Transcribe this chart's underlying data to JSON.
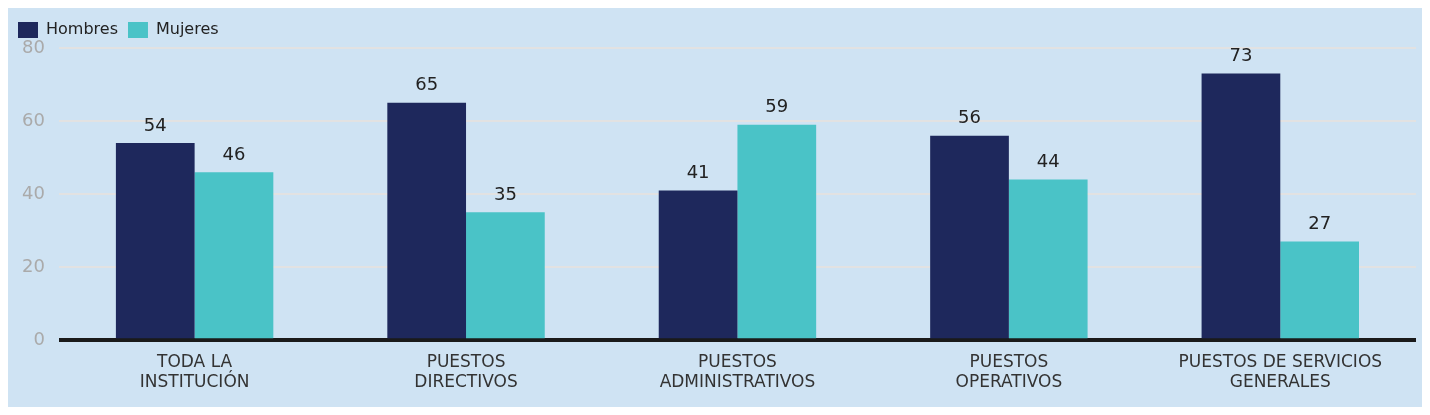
{
  "chart_data": {
    "type": "bar",
    "categories": [
      "TODA LA\nINSTITUCIÓN",
      "PUESTOS\nDIRECTIVOS",
      "PUESTOS\nADMINISTRATIVOS",
      "PUESTOS\nOPERATIVOS",
      "PUESTOS DE SERVICIOS\nGENERALES"
    ],
    "series": [
      {
        "name": "Hombres",
        "color": "#1e285c",
        "values": [
          54,
          65,
          41,
          56,
          73
        ]
      },
      {
        "name": "Mujeres",
        "color": "#4ac3c7",
        "values": [
          46,
          35,
          59,
          44,
          27
        ]
      }
    ],
    "ylim": [
      0,
      80
    ],
    "yticks": [
      0,
      20,
      40,
      60,
      80
    ],
    "grid": "y",
    "legend": "top left",
    "data_labels": true
  }
}
